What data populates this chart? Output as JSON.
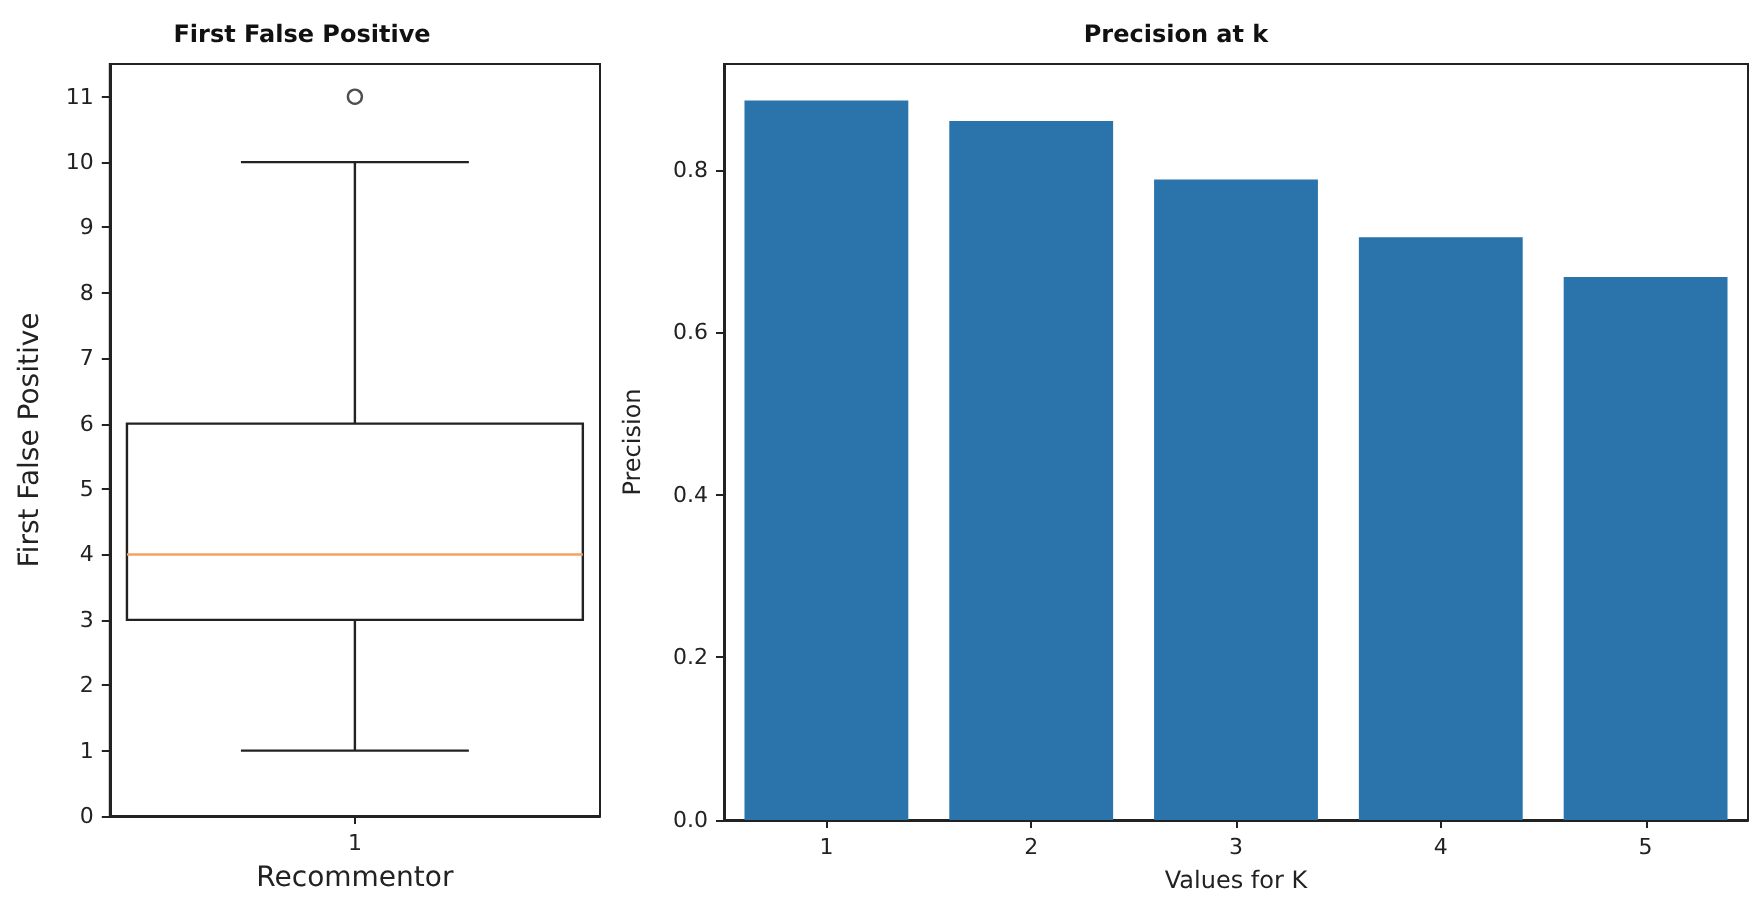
{
  "chart_data": [
    {
      "type": "box",
      "title": "First False Positive",
      "xlabel": "Recommentor",
      "ylabel": "First False Positive",
      "categories": [
        "1"
      ],
      "boxes": [
        {
          "low": 1,
          "q1": 3,
          "median": 4,
          "q3": 6,
          "high": 10,
          "outliers": [
            11
          ]
        }
      ],
      "ylim": [
        0,
        11.5
      ],
      "yticks": [
        0,
        1,
        2,
        3,
        4,
        5,
        6,
        7,
        8,
        9,
        10,
        11
      ]
    },
    {
      "type": "bar",
      "title": "Precision at k",
      "xlabel": "Values for K",
      "ylabel": "Precision",
      "categories": [
        "1",
        "2",
        "3",
        "4",
        "5"
      ],
      "series": [
        {
          "color": "#2a74ab",
          "values": [
            0.885,
            0.86,
            0.788,
            0.717,
            0.668
          ]
        }
      ],
      "ylim": [
        0,
        0.93
      ],
      "yticks": [
        {
          "value": 0,
          "label": "0.0"
        },
        0.2,
        0.4,
        0.6,
        0.8
      ]
    }
  ]
}
